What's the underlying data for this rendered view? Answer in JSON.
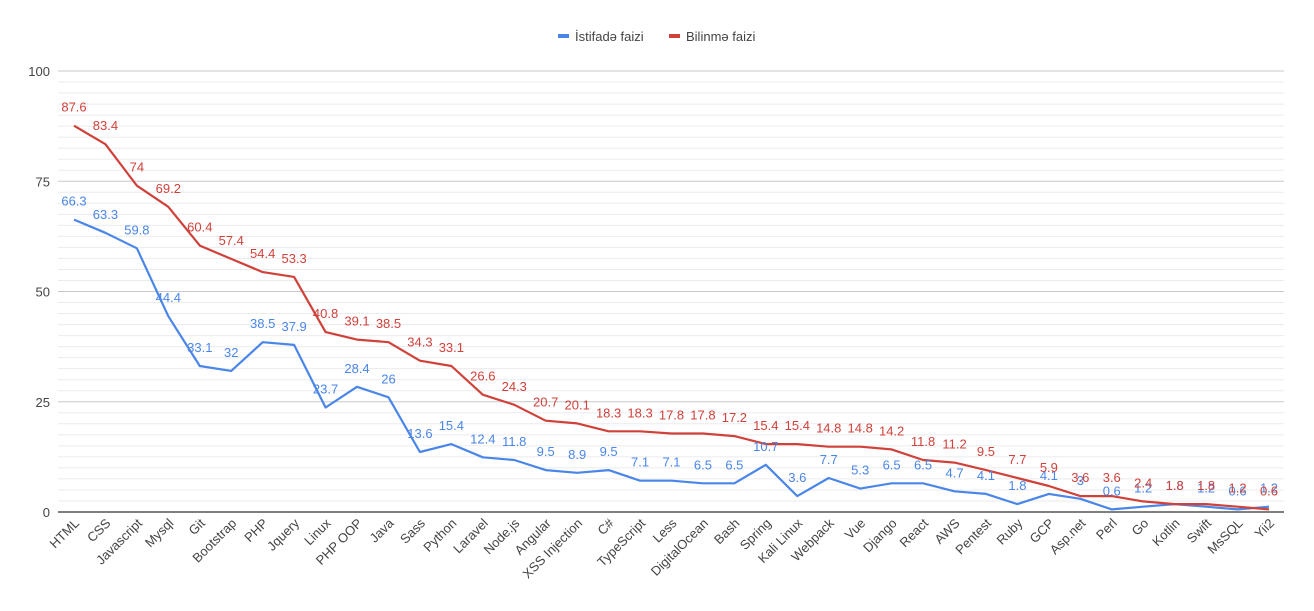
{
  "chart_data": {
    "type": "line",
    "title": "",
    "xlabel": "",
    "ylabel": "",
    "ylim": [
      0,
      100
    ],
    "yticks": [
      0,
      25,
      50,
      75,
      100
    ],
    "grid": true,
    "legend_position": "top-center",
    "categories": [
      "HTML",
      "CSS",
      "Javascript",
      "Mysql",
      "Git",
      "Bootstrap",
      "PHP",
      "Jquery",
      "Linux",
      "PHP OOP",
      "Java",
      "Sass",
      "Python",
      "Laravel",
      "Node.js",
      "Angular",
      "XSS Injection",
      "C#",
      "TypeScript",
      "Less",
      "DigitalOcean",
      "Bash",
      "Spring",
      "Kali Linux",
      "Webpack",
      "Vue",
      "Django",
      "React",
      "AWS",
      "Pentest",
      "Ruby",
      "GCP",
      "Asp.net",
      "Perl",
      "Go",
      "Kotlin",
      "Swift",
      "MsSQL",
      "Yii2"
    ],
    "series": [
      {
        "name": "İstifadə faizi",
        "color": "#4a86e8",
        "values": [
          66.3,
          63.3,
          59.8,
          44.4,
          33.1,
          32,
          38.5,
          37.9,
          23.7,
          28.4,
          26,
          13.6,
          15.4,
          12.4,
          11.8,
          9.5,
          8.9,
          9.5,
          7.1,
          7.1,
          6.5,
          6.5,
          10.7,
          3.6,
          7.7,
          5.3,
          6.5,
          6.5,
          4.7,
          4.1,
          1.8,
          4.1,
          3,
          0.6,
          1.2,
          1.8,
          1.2,
          0.6,
          1.2
        ],
        "labels": [
          "66.3",
          "63.3",
          "59.8",
          "44.4",
          "33.1",
          "32",
          "38.5",
          "37.9",
          "23.7",
          "28.4",
          "26",
          "13.6",
          "15.4",
          "12.4",
          "11.8",
          "9.5",
          "8.9",
          "9.5",
          "7.1",
          "7.1",
          "6.5",
          "6.5",
          "10.7",
          "3.6",
          "7.7",
          "5.3",
          "6.5",
          "6.5",
          "4.7",
          "4.1",
          "1.8",
          "4.1",
          "3",
          "0.6",
          "1.2",
          "1.8",
          "1.2",
          "0.6",
          "1.2"
        ]
      },
      {
        "name": "Bilinmə faizi",
        "color": "#d0413a",
        "values": [
          87.6,
          83.4,
          74,
          69.2,
          60.4,
          57.4,
          54.4,
          53.3,
          40.8,
          39.1,
          38.5,
          34.3,
          33.1,
          26.6,
          24.3,
          20.7,
          20.1,
          18.3,
          18.3,
          17.8,
          17.8,
          17.2,
          15.4,
          15.4,
          14.8,
          14.8,
          14.2,
          11.8,
          11.2,
          9.5,
          7.7,
          5.9,
          3.6,
          3.6,
          2.4,
          1.8,
          1.8,
          1.2,
          0.6
        ],
        "labels": [
          "87.6",
          "83.4",
          "74",
          "69.2",
          "60.4",
          "57.4",
          "54.4",
          "53.3",
          "40.8",
          "39.1",
          "38.5",
          "34.3",
          "33.1",
          "26.6",
          "24.3",
          "20.7",
          "20.1",
          "18.3",
          "18.3",
          "17.8",
          "17.8",
          "17.2",
          "15.4",
          "15.4",
          "14.8",
          "14.8",
          "14.2",
          "11.8",
          "11.2",
          "9.5",
          "7.7",
          "5.9",
          "3.6",
          "3.6",
          "2.4",
          "1.8",
          "1.8",
          "1.2",
          "0.6"
        ]
      }
    ]
  }
}
